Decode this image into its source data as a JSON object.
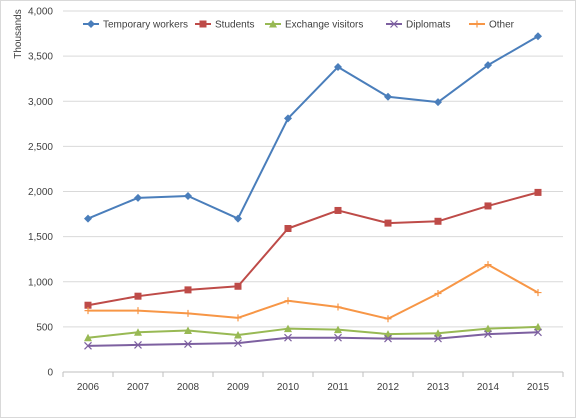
{
  "chart_data": {
    "type": "line",
    "title": "",
    "xlabel": "",
    "ylabel": "Thousands",
    "categories": [
      "2006",
      "2007",
      "2008",
      "2009",
      "2010",
      "2011",
      "2012",
      "2013",
      "2014",
      "2015"
    ],
    "ylim": [
      0,
      4000
    ],
    "yticks": [
      0,
      500,
      1000,
      1500,
      2000,
      2500,
      3000,
      3500,
      4000
    ],
    "ytick_labels": [
      "0",
      "500",
      "1,000",
      "1,500",
      "2,000",
      "2,500",
      "3,000",
      "3,500",
      "4,000"
    ],
    "grid": "horizontal",
    "legend_position": "top",
    "series": [
      {
        "name": "Temporary workers",
        "color": "#4a7ebb",
        "marker": "diamond",
        "values": [
          1700,
          1930,
          1950,
          1700,
          2810,
          3380,
          3050,
          2990,
          3400,
          3720
        ]
      },
      {
        "name": "Students",
        "color": "#be4b48",
        "marker": "square",
        "values": [
          740,
          840,
          910,
          950,
          1590,
          1790,
          1650,
          1670,
          1840,
          1990
        ]
      },
      {
        "name": "Exchange visitors",
        "color": "#98b954",
        "marker": "triangle",
        "values": [
          380,
          440,
          460,
          410,
          480,
          470,
          420,
          430,
          480,
          500
        ]
      },
      {
        "name": "Diplomats",
        "color": "#7d60a0",
        "marker": "x",
        "values": [
          290,
          300,
          310,
          320,
          380,
          380,
          370,
          370,
          420,
          440
        ]
      },
      {
        "name": "Other",
        "color": "#f79646",
        "marker": "plus",
        "values": [
          680,
          680,
          650,
          600,
          790,
          720,
          590,
          870,
          1190,
          880
        ]
      }
    ]
  }
}
